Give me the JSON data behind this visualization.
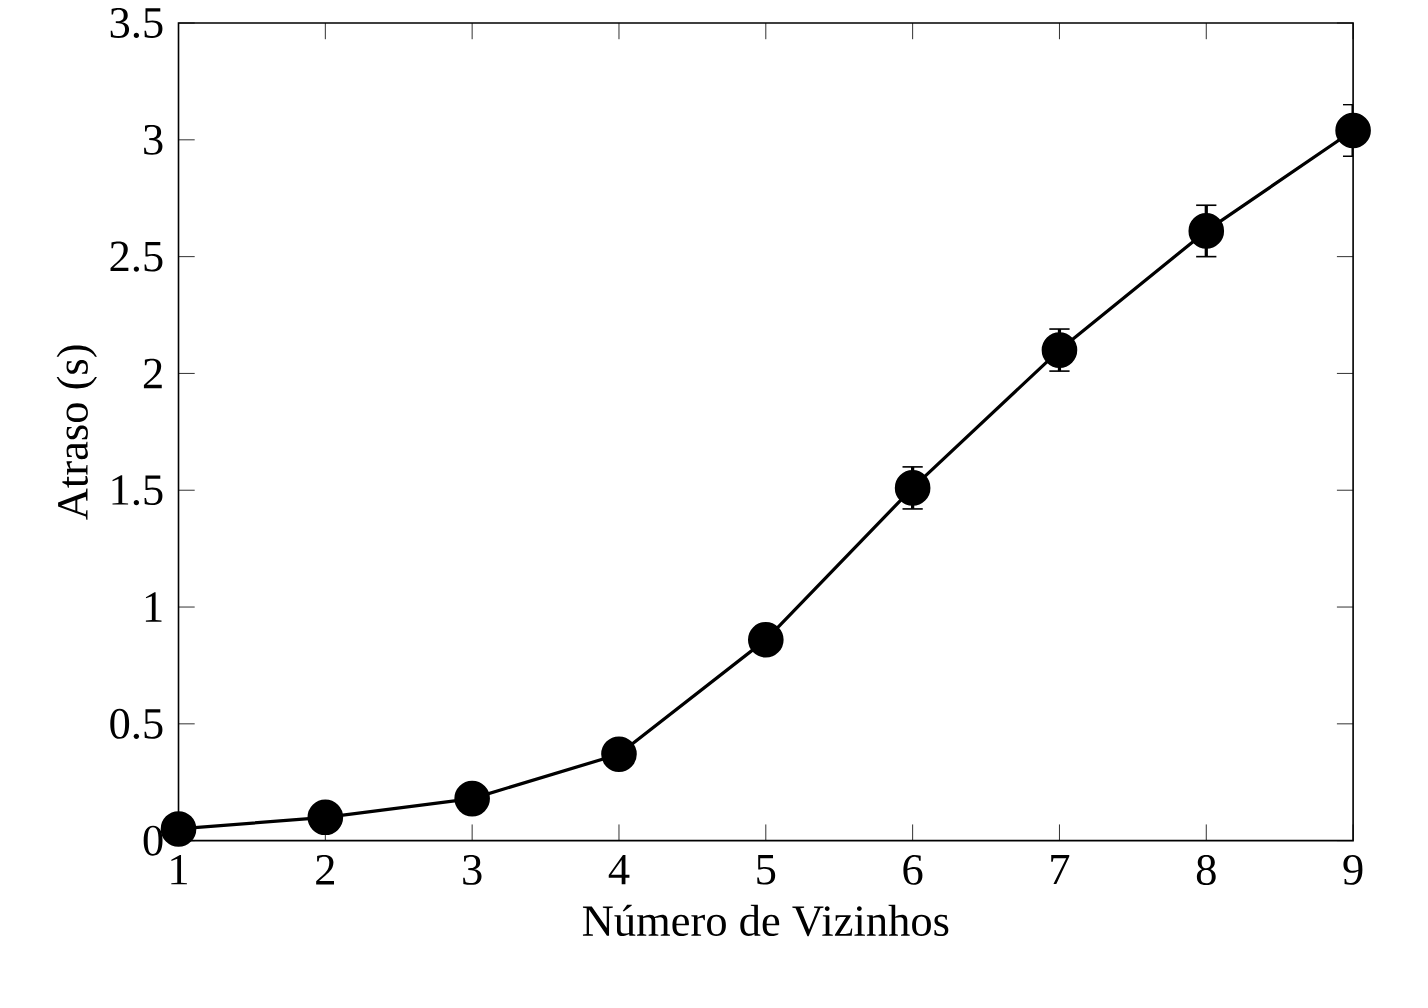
{
  "chart_data": {
    "type": "line",
    "xlabel": "Número de Vizinhos",
    "ylabel": "Atraso (s)",
    "x": [
      1,
      2,
      3,
      4,
      5,
      6,
      7,
      8,
      9
    ],
    "series": [
      {
        "color": "#000000",
        "values": [
          0.05,
          0.1,
          0.18,
          0.37,
          0.86,
          1.51,
          2.1,
          2.61,
          3.04
        ],
        "errors": [
          null,
          null,
          null,
          null,
          null,
          0.09,
          0.09,
          0.11,
          0.11
        ]
      }
    ],
    "xlim": [
      1,
      9
    ],
    "ylim": [
      0,
      3.5
    ],
    "xticks": [
      1,
      2,
      3,
      4,
      5,
      6,
      7,
      8,
      9
    ],
    "yticks": [
      0,
      0.5,
      1,
      1.5,
      2,
      2.5,
      3,
      3.5
    ],
    "marker": "circle",
    "line_style": "solid",
    "grid": false
  }
}
